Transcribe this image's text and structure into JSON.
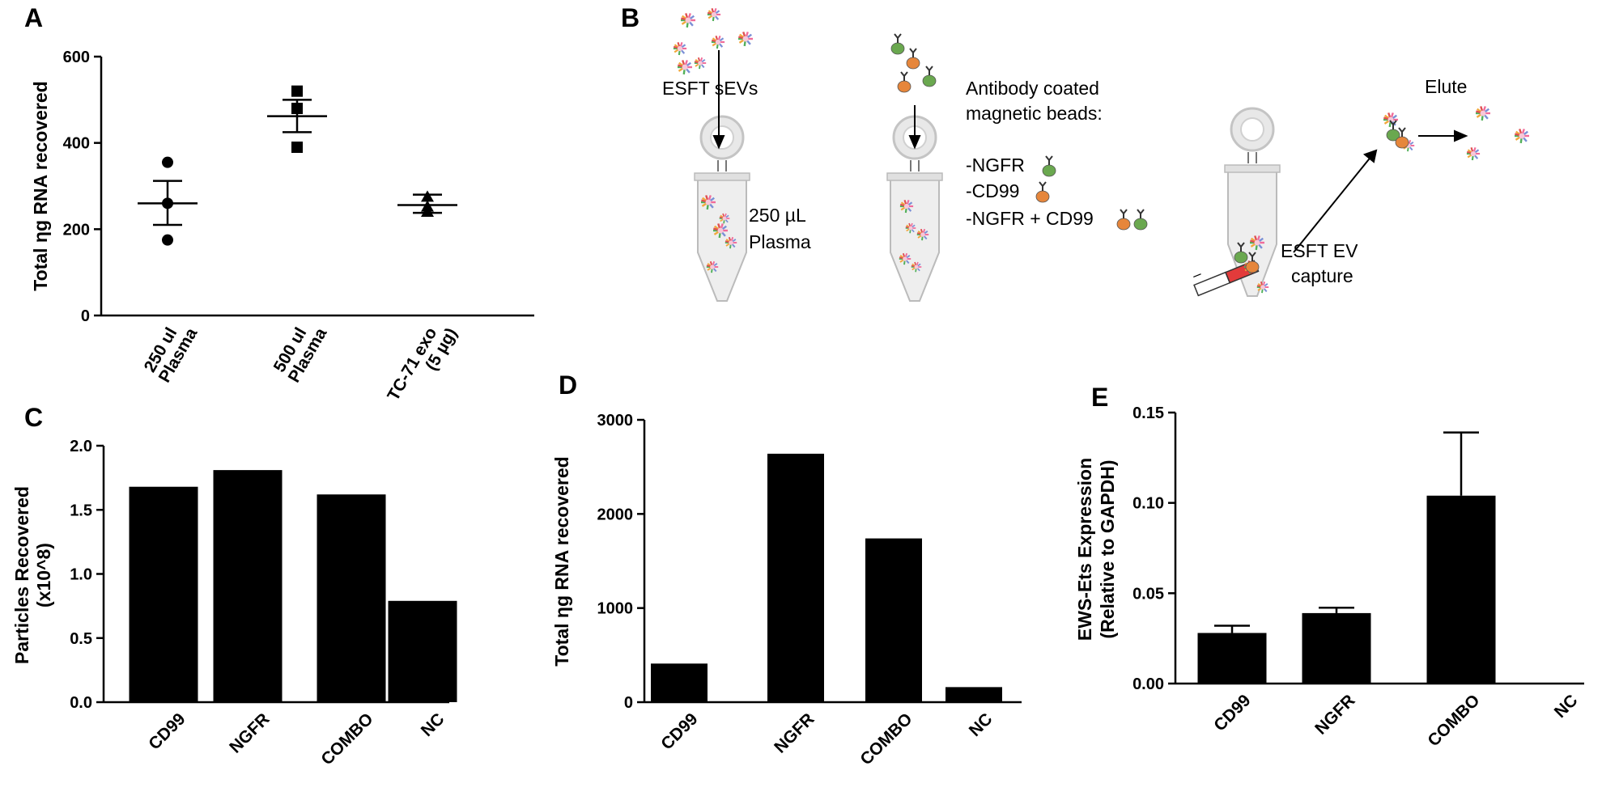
{
  "panels": {
    "a": {
      "letter": "A"
    },
    "b": {
      "letter": "B"
    },
    "c": {
      "letter": "C"
    },
    "d": {
      "letter": "D"
    },
    "e": {
      "letter": "E"
    }
  },
  "diagram": {
    "esft_sevs": "ESFT sEVs",
    "volume": "250 µL",
    "plasma": "Plasma",
    "antibody_line1": "Antibody coated",
    "antibody_line2": "magnetic beads:",
    "opt_ngfr": "-NGFR",
    "opt_cd99": "-CD99",
    "opt_combo": "-NGFR + CD99",
    "elute": "Elute",
    "capture_line1": "ESFT EV",
    "capture_line2": "capture",
    "magnet_minus": "–",
    "magnet_plus": "+"
  },
  "chart_data": [
    {
      "id": "A",
      "type": "scatter",
      "ylabel": "Total ηg RNA recovered",
      "ylim": [
        0,
        600
      ],
      "yticks": [
        0,
        200,
        400,
        600
      ],
      "groups": [
        {
          "label_line1": "250 ul",
          "label_line2": "Plasma",
          "points": [
            355,
            260,
            175
          ],
          "mean": 260,
          "sem": [
            210,
            312
          ]
        },
        {
          "label_line1": "500 ul",
          "label_line2": "Plasma",
          "points": [
            520,
            480,
            390
          ],
          "mean": 462,
          "sem": [
            425,
            500
          ]
        },
        {
          "label_line1": "TC-71 exo",
          "label_line2": "(5 µg)",
          "points": [
            275,
            252,
            240
          ],
          "mean": 256,
          "sem": [
            238,
            280
          ]
        }
      ]
    },
    {
      "id": "C",
      "type": "bar",
      "ylabel_line1": "Particles Recovered",
      "ylabel_line2": "(x10^8)",
      "categories": [
        "CD99",
        "NGFR",
        "COMBO",
        "NC"
      ],
      "values": [
        1.68,
        1.81,
        1.62,
        0.79
      ],
      "ylim": [
        0,
        2.0
      ],
      "yticks": [
        "0.0",
        "0.5",
        "1.0",
        "1.5",
        "2.0"
      ]
    },
    {
      "id": "D",
      "type": "bar",
      "ylabel": "Total ηg RNA recovered",
      "categories": [
        "CD99",
        "NGFR",
        "COMBO",
        "NC"
      ],
      "values": [
        410,
        2640,
        1740,
        160
      ],
      "ylim": [
        0,
        3000
      ],
      "yticks": [
        "0",
        "1000",
        "2000",
        "3000"
      ]
    },
    {
      "id": "E",
      "type": "bar",
      "ylabel_line1": "EWS-Ets Expression",
      "ylabel_line2": "(Relative to GAPDH)",
      "categories": [
        "CD99",
        "NGFR",
        "COMBO",
        "NC"
      ],
      "values": [
        0.028,
        0.039,
        0.104,
        0
      ],
      "errors": [
        0.032,
        0.042,
        0.139,
        null
      ],
      "ylim": [
        0,
        0.15
      ],
      "yticks": [
        "0.00",
        "0.05",
        "0.10",
        "0.15"
      ]
    }
  ]
}
